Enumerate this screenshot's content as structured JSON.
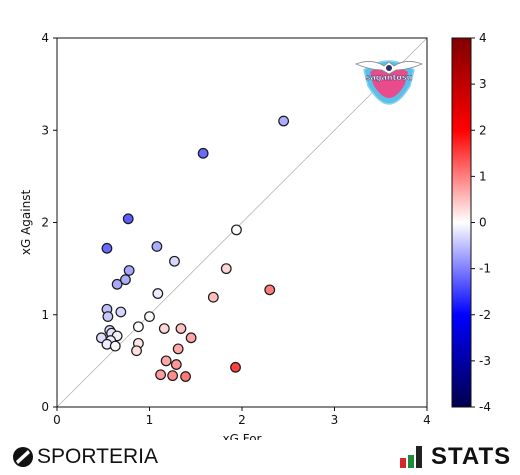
{
  "chart_data": {
    "type": "scatter",
    "title": "",
    "xlabel": "xG For",
    "ylabel": "xG Against",
    "xlim": [
      0,
      4
    ],
    "ylim": [
      0,
      4
    ],
    "xticks": [
      "0",
      "1",
      "2",
      "3",
      "4"
    ],
    "yticks": [
      "0",
      "1",
      "2",
      "3",
      "4"
    ],
    "diagonal_reference_line": true,
    "grid": false,
    "color_by": "xG For - xG Against",
    "colorbar": {
      "min": -4,
      "max": 4,
      "ticks": [
        "-4",
        "-3",
        "-2",
        "-1",
        "0",
        "1",
        "2",
        "3",
        "4"
      ],
      "colormap": "seismic"
    },
    "points": [
      {
        "x": 2.45,
        "y": 3.1
      },
      {
        "x": 1.58,
        "y": 2.75
      },
      {
        "x": 0.77,
        "y": 2.04
      },
      {
        "x": 0.54,
        "y": 1.72
      },
      {
        "x": 1.08,
        "y": 1.74
      },
      {
        "x": 1.27,
        "y": 1.58
      },
      {
        "x": 1.94,
        "y": 1.92
      },
      {
        "x": 0.78,
        "y": 1.48
      },
      {
        "x": 0.74,
        "y": 1.38
      },
      {
        "x": 0.65,
        "y": 1.33
      },
      {
        "x": 1.83,
        "y": 1.5
      },
      {
        "x": 2.3,
        "y": 1.27
      },
      {
        "x": 1.69,
        "y": 1.19
      },
      {
        "x": 1.09,
        "y": 1.23
      },
      {
        "x": 0.54,
        "y": 1.06
      },
      {
        "x": 0.69,
        "y": 1.03
      },
      {
        "x": 0.55,
        "y": 0.98
      },
      {
        "x": 1.0,
        "y": 0.98
      },
      {
        "x": 0.88,
        "y": 0.87
      },
      {
        "x": 1.16,
        "y": 0.85
      },
      {
        "x": 1.34,
        "y": 0.85
      },
      {
        "x": 0.57,
        "y": 0.83
      },
      {
        "x": 0.59,
        "y": 0.8
      },
      {
        "x": 0.65,
        "y": 0.77
      },
      {
        "x": 0.48,
        "y": 0.75
      },
      {
        "x": 1.45,
        "y": 0.75
      },
      {
        "x": 0.58,
        "y": 0.72
      },
      {
        "x": 0.88,
        "y": 0.69
      },
      {
        "x": 0.54,
        "y": 0.68
      },
      {
        "x": 0.63,
        "y": 0.66
      },
      {
        "x": 1.31,
        "y": 0.63
      },
      {
        "x": 0.86,
        "y": 0.61
      },
      {
        "x": 1.18,
        "y": 0.5
      },
      {
        "x": 1.29,
        "y": 0.46
      },
      {
        "x": 1.93,
        "y": 0.43
      },
      {
        "x": 1.12,
        "y": 0.35
      },
      {
        "x": 1.25,
        "y": 0.34
      },
      {
        "x": 1.39,
        "y": 0.33
      }
    ]
  },
  "logo": {
    "team_name": "sagantosu",
    "colors": [
      "#5bc0e8",
      "#e84c8b",
      "#2d2d6b"
    ]
  },
  "footer": {
    "brand_left": "SPORTERIA",
    "brand_right": "STATS",
    "brand_right_colors": [
      "#d62a2a",
      "#1f8a3a",
      "#222222"
    ]
  }
}
